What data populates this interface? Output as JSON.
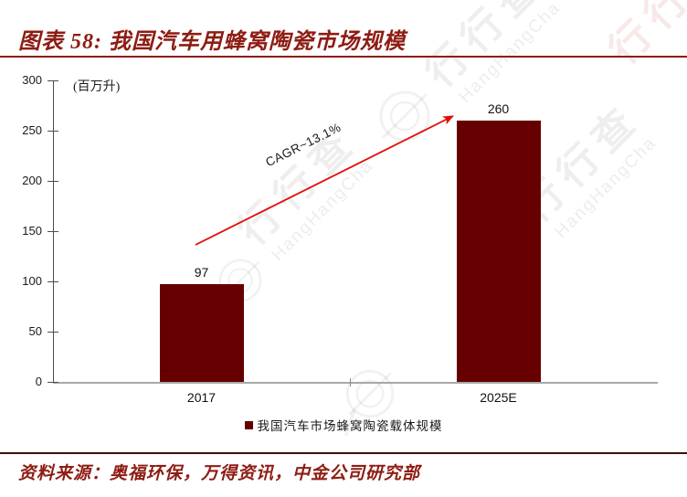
{
  "header": {
    "title": "图表 58: 我国汽车用蜂窝陶瓷市场规模"
  },
  "watermark": {
    "brand_cn": "行行查",
    "brand_en": "HangHangCha"
  },
  "chart_data": {
    "type": "bar",
    "title": "图表 58: 我国汽车用蜂窝陶瓷市场规模",
    "unit_label": "(百万升)",
    "categories": [
      "2017",
      "2025E"
    ],
    "values": [
      97,
      260
    ],
    "value_labels": [
      "97",
      "260"
    ],
    "ylim": [
      0,
      300
    ],
    "yticks": [
      0,
      50,
      100,
      150,
      200,
      250,
      300
    ],
    "grid": false,
    "bar_color": "#660000",
    "annotation": {
      "text": "CAGR~13.1%",
      "arrow_color": "#e00a0a"
    },
    "legend": [
      {
        "label": "我国汽车市场蜂窝陶瓷载体规模",
        "color": "#660000",
        "position": "bottom"
      }
    ]
  },
  "footer": {
    "source": "资料来源：奥福环保，万得资讯，中金公司研究部"
  }
}
